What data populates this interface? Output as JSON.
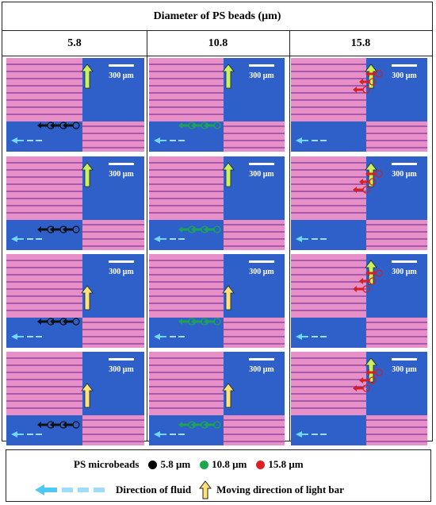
{
  "header": {
    "title": "Diameter of PS beads (μm)"
  },
  "columns": [
    "5.8",
    "10.8",
    "15.8"
  ],
  "scale_label": "300 μm",
  "legend": {
    "microbeads_label": "PS microbeads",
    "items": [
      {
        "label": "5.8 μm",
        "color": "#000000"
      },
      {
        "label": "10.8 μm",
        "color": "#1aa64b"
      },
      {
        "label": "15.8 μm",
        "color": "#e02020"
      }
    ],
    "fluid_label": "Direction of fluid",
    "lightbar_label": "Moving direction of light bar"
  },
  "colors": {
    "stripe_pink": "#e88fc8",
    "stripe_line": "#7a3a9a",
    "blue": "#2f5fc9",
    "green_arrow": "#c8f060",
    "yellow_arrow": "#ffe27a",
    "fluid_arrow": "#6fd8ff"
  },
  "panels": [
    [
      {
        "bar": "green",
        "bead": "black"
      },
      {
        "bar": "green",
        "bead": "black"
      },
      {
        "bar": "yellow",
        "bead": "black"
      },
      {
        "bar": "yellow",
        "bead": "black"
      }
    ],
    [
      {
        "bar": "green",
        "bead": "green"
      },
      {
        "bar": "green",
        "bead": "green"
      },
      {
        "bar": "yellow",
        "bead": "green"
      },
      {
        "bar": "yellow",
        "bead": "green"
      }
    ],
    [
      {
        "bar": "green",
        "bead": "red"
      },
      {
        "bar": "green",
        "bead": "red"
      },
      {
        "bar": "green",
        "bead": "red"
      },
      {
        "bar": "green",
        "bead": "red"
      }
    ]
  ]
}
